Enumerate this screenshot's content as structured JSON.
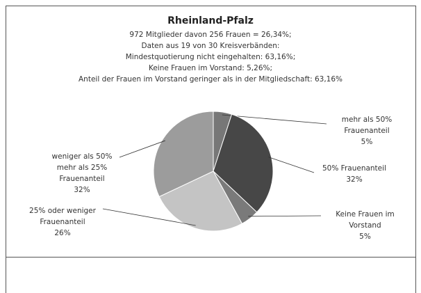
{
  "chart_data": {
    "type": "pie",
    "title": "Rheinland-Pfalz",
    "subtitle": [
      "972 Mitglieder davon 256 Frauen = 26,34%;",
      "Daten aus 19 von 30 Kreisverbänden:",
      "Mindestquotierung nicht eingehalten: 63,16%;",
      "Keine Frauen im Vorstand: 5,26%;",
      "Anteil der Frauen im Vorstand geringer als in der Mitgliedschaft: 63,16%"
    ],
    "categories": [
      "mehr als 50% Frauenanteil",
      "50% Frauenanteil",
      "Keine Frauen im Vorstand",
      "25% oder weniger Frauenanteil",
      "weniger als 50% mehr als 25% Frauenanteil"
    ],
    "values": [
      5,
      32,
      5,
      26,
      32
    ],
    "value_labels": [
      "5%",
      "32%",
      "5%",
      "26%",
      "32%"
    ],
    "colors": [
      "#777777",
      "#474747",
      "#7a7a7a",
      "#c4c4c4",
      "#9c9c9c"
    ]
  }
}
